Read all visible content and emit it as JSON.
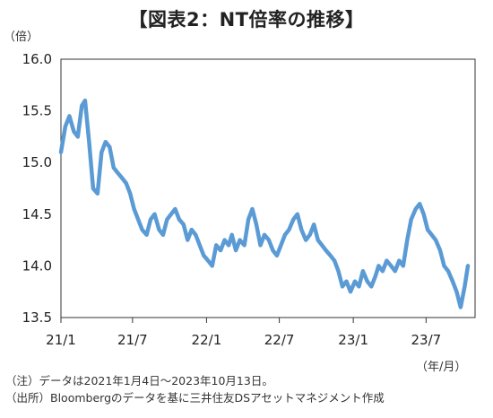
{
  "chart_data": {
    "type": "line",
    "title": "【図表2：NT倍率の推移】",
    "ylabel": "（倍）",
    "xlabel": "（年/月）",
    "ylim": [
      13.5,
      16.0
    ],
    "yticks": [
      "13.5",
      "14.0",
      "14.5",
      "15.0",
      "15.5",
      "16.0"
    ],
    "xlim": [
      "2021-01-04",
      "2023-10-13"
    ],
    "xticks": [
      {
        "date": "2021-01",
        "label": "21/1"
      },
      {
        "date": "2021-07",
        "label": "21/7"
      },
      {
        "date": "2022-01",
        "label": "22/1"
      },
      {
        "date": "2022-07",
        "label": "22/7"
      },
      {
        "date": "2023-01",
        "label": "23/1"
      },
      {
        "date": "2023-07",
        "label": "23/7"
      }
    ],
    "grid": false,
    "line_color": "#5b9bd5",
    "series": [
      {
        "x": [
          "2021-01-04",
          "2021-01-15",
          "2021-01-25",
          "2021-02-05",
          "2021-02-15",
          "2021-02-25",
          "2021-03-05",
          "2021-03-15",
          "2021-03-25",
          "2021-04-05",
          "2021-04-15",
          "2021-04-25",
          "2021-05-05",
          "2021-05-15",
          "2021-05-25",
          "2021-06-05",
          "2021-06-15",
          "2021-06-25",
          "2021-07-05",
          "2021-07-15",
          "2021-07-25",
          "2021-08-05",
          "2021-08-15",
          "2021-08-25",
          "2021-09-05",
          "2021-09-15",
          "2021-09-25",
          "2021-10-05",
          "2021-10-15",
          "2021-10-25",
          "2021-11-05",
          "2021-11-15",
          "2021-11-25",
          "2021-12-05",
          "2021-12-15",
          "2021-12-25",
          "2022-01-05",
          "2022-01-15",
          "2022-01-25",
          "2022-02-05",
          "2022-02-15",
          "2022-02-25",
          "2022-03-05",
          "2022-03-15",
          "2022-03-25",
          "2022-04-05",
          "2022-04-15",
          "2022-04-25",
          "2022-05-05",
          "2022-05-15",
          "2022-05-25",
          "2022-06-05",
          "2022-06-15",
          "2022-06-25",
          "2022-07-05",
          "2022-07-15",
          "2022-07-25",
          "2022-08-05",
          "2022-08-15",
          "2022-08-25",
          "2022-09-05",
          "2022-09-15",
          "2022-09-25",
          "2022-10-05",
          "2022-10-15",
          "2022-10-25",
          "2022-11-05",
          "2022-11-15",
          "2022-11-25",
          "2022-12-05",
          "2022-12-15",
          "2022-12-25",
          "2023-01-05",
          "2023-01-15",
          "2023-01-25",
          "2023-02-05",
          "2023-02-15",
          "2023-02-25",
          "2023-03-05",
          "2023-03-15",
          "2023-03-25",
          "2023-04-05",
          "2023-04-15",
          "2023-04-25",
          "2023-05-05",
          "2023-05-15",
          "2023-05-25",
          "2023-06-05",
          "2023-06-15",
          "2023-06-25",
          "2023-07-05",
          "2023-07-15",
          "2023-07-25",
          "2023-08-05",
          "2023-08-15",
          "2023-08-25",
          "2023-09-05",
          "2023-09-15",
          "2023-09-25",
          "2023-10-05",
          "2023-10-13"
        ],
        "values": [
          15.1,
          15.35,
          15.45,
          15.3,
          15.25,
          15.55,
          15.6,
          15.2,
          14.75,
          14.7,
          15.1,
          15.2,
          15.15,
          14.95,
          14.9,
          14.85,
          14.8,
          14.7,
          14.55,
          14.45,
          14.35,
          14.3,
          14.45,
          14.5,
          14.35,
          14.3,
          14.45,
          14.5,
          14.55,
          14.45,
          14.4,
          14.25,
          14.35,
          14.3,
          14.2,
          14.1,
          14.05,
          14.0,
          14.2,
          14.15,
          14.25,
          14.2,
          14.3,
          14.15,
          14.25,
          14.2,
          14.45,
          14.55,
          14.4,
          14.2,
          14.3,
          14.25,
          14.15,
          14.1,
          14.2,
          14.3,
          14.35,
          14.45,
          14.5,
          14.35,
          14.25,
          14.3,
          14.4,
          14.25,
          14.2,
          14.15,
          14.1,
          14.05,
          13.95,
          13.8,
          13.85,
          13.75,
          13.85,
          13.8,
          13.95,
          13.85,
          13.8,
          13.9,
          14.0,
          13.95,
          14.05,
          14.0,
          13.95,
          14.05,
          14.0,
          14.25,
          14.45,
          14.55,
          14.6,
          14.5,
          14.35,
          14.3,
          14.25,
          14.15,
          14.0,
          13.95,
          13.85,
          13.75,
          13.6,
          13.8,
          14.0
        ]
      }
    ]
  },
  "notes": [
    "（注）データは2021年1月4日～2023年10月13日。",
    "（出所）Bloombergのデータを基に三井住友DSアセットマネジメント作成"
  ]
}
